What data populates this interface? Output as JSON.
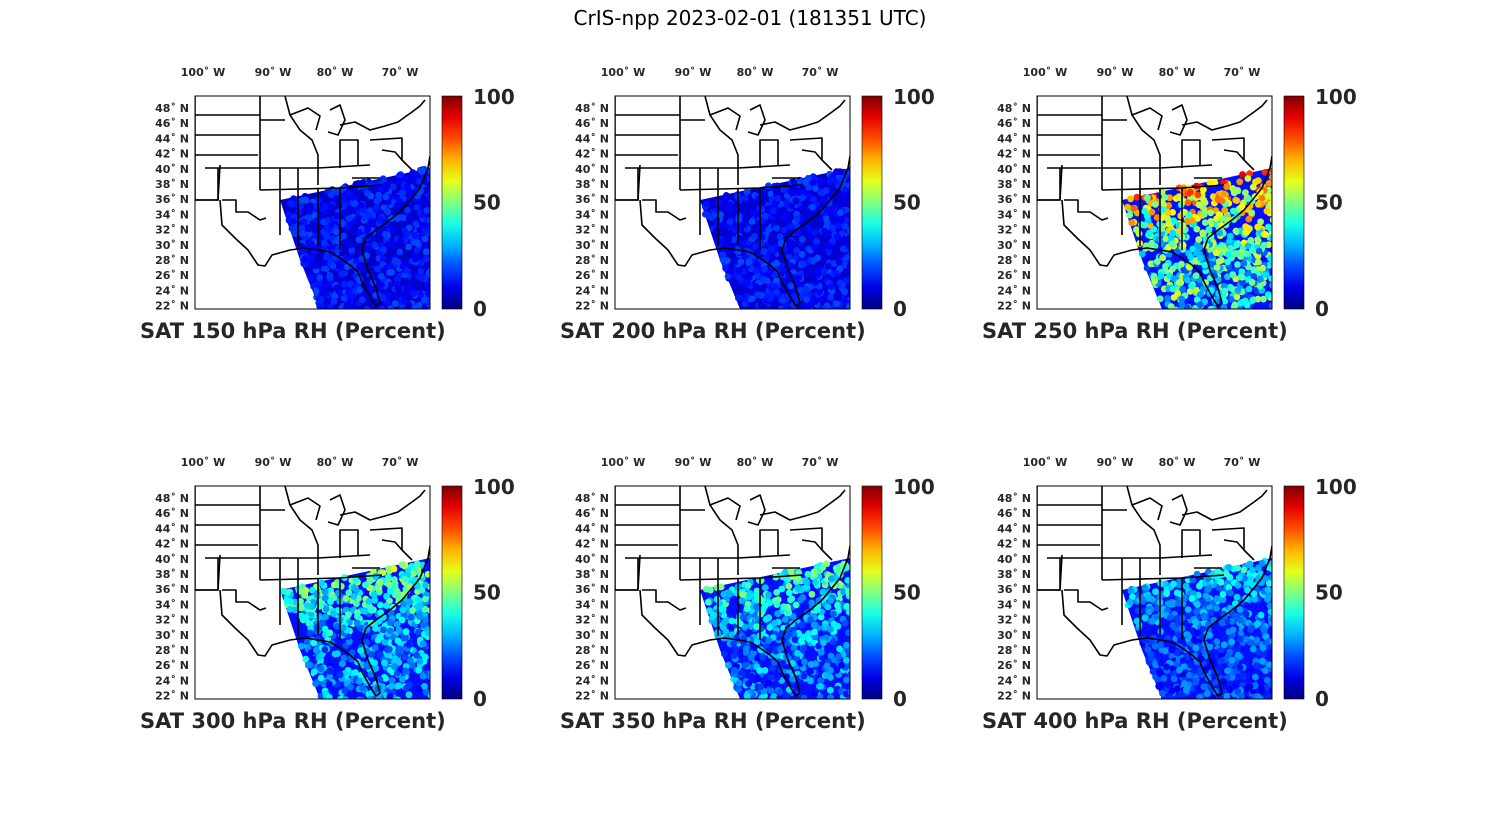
{
  "title": "CrIS-npp 2023-02-01 (181351 UTC)",
  "lon_ticks": [
    "100˚ W",
    "90˚ W",
    "80˚ W",
    "70˚ W"
  ],
  "lat_ticks": [
    "48˚ N",
    "46˚ N",
    "44˚ N",
    "42˚ N",
    "40˚ N",
    "38˚ N",
    "36˚ N",
    "34˚ N",
    "32˚ N",
    "30˚ N",
    "28˚ N",
    "26˚ N",
    "24˚ N",
    "22˚ N"
  ],
  "colorbar": {
    "min": 0,
    "max": 100,
    "ticks": [
      "100",
      "50",
      "0"
    ],
    "colormap": "jet"
  },
  "panels": [
    {
      "caption": "SAT 150 hPa RH (Percent)",
      "pressure_hPa": 150,
      "field_level": 0.05
    },
    {
      "caption": "SAT 200 hPa RH (Percent)",
      "pressure_hPa": 200,
      "field_level": 0.06
    },
    {
      "caption": "SAT 250 hPa RH (Percent)",
      "pressure_hPa": 250,
      "field_level": 0.45
    },
    {
      "caption": "SAT 300 hPa RH (Percent)",
      "pressure_hPa": 300,
      "field_level": 0.3
    },
    {
      "caption": "SAT 350 hPa RH (Percent)",
      "pressure_hPa": 350,
      "field_level": 0.28
    },
    {
      "caption": "SAT 400 hPa RH (Percent)",
      "pressure_hPa": 400,
      "field_level": 0.22
    }
  ]
}
